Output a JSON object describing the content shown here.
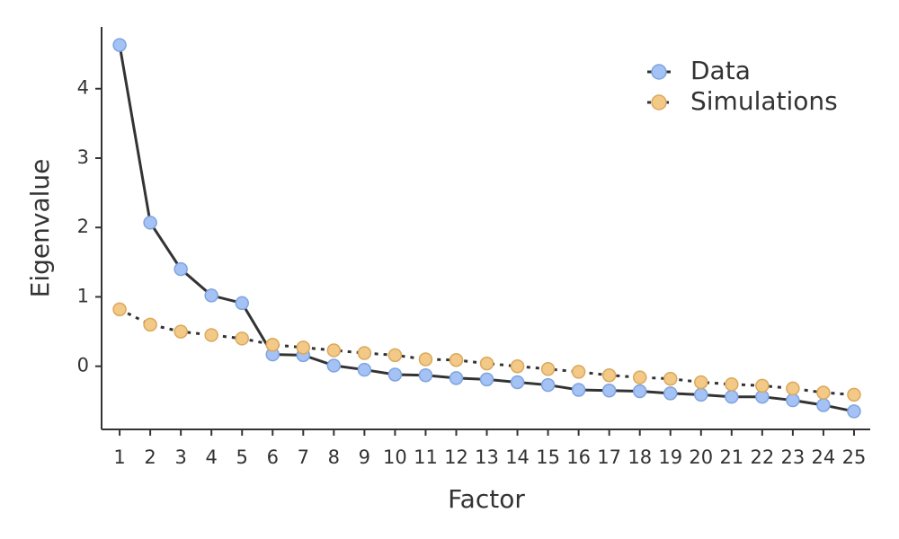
{
  "chart_data": {
    "type": "line",
    "x_label": "Factor",
    "y_label": "Eigenvalue",
    "x": [
      1,
      2,
      3,
      4,
      5,
      6,
      7,
      8,
      9,
      10,
      11,
      12,
      13,
      14,
      15,
      16,
      17,
      18,
      19,
      20,
      21,
      22,
      23,
      24,
      25
    ],
    "series": [
      {
        "name": "Data",
        "color": "#a4c2f4",
        "edge_color": "#7fa3e0",
        "line_style": "solid",
        "values": [
          4.63,
          2.07,
          1.4,
          1.02,
          0.91,
          0.17,
          0.16,
          0.01,
          -0.05,
          -0.12,
          -0.13,
          -0.17,
          -0.19,
          -0.23,
          -0.27,
          -0.34,
          -0.35,
          -0.36,
          -0.39,
          -0.41,
          -0.44,
          -0.44,
          -0.49,
          -0.56,
          -0.65
        ]
      },
      {
        "name": "Simulations",
        "color": "#f2c987",
        "edge_color": "#dba85c",
        "line_style": "dotted",
        "values": [
          0.82,
          0.6,
          0.5,
          0.45,
          0.4,
          0.31,
          0.27,
          0.23,
          0.19,
          0.16,
          0.1,
          0.09,
          0.04,
          0.0,
          -0.04,
          -0.08,
          -0.13,
          -0.16,
          -0.18,
          -0.23,
          -0.26,
          -0.28,
          -0.32,
          -0.38,
          -0.41
        ]
      }
    ],
    "xlim": [
      0.41,
      25.53
    ],
    "ylim": [
      -0.91,
      4.89
    ],
    "xticks": [
      1,
      2,
      3,
      4,
      5,
      6,
      7,
      8,
      9,
      10,
      11,
      12,
      13,
      14,
      15,
      16,
      17,
      18,
      19,
      20,
      21,
      22,
      23,
      24,
      25
    ],
    "yticks": [
      0,
      1,
      2,
      3,
      4
    ],
    "grid": false,
    "legend_position": "upper-right"
  }
}
